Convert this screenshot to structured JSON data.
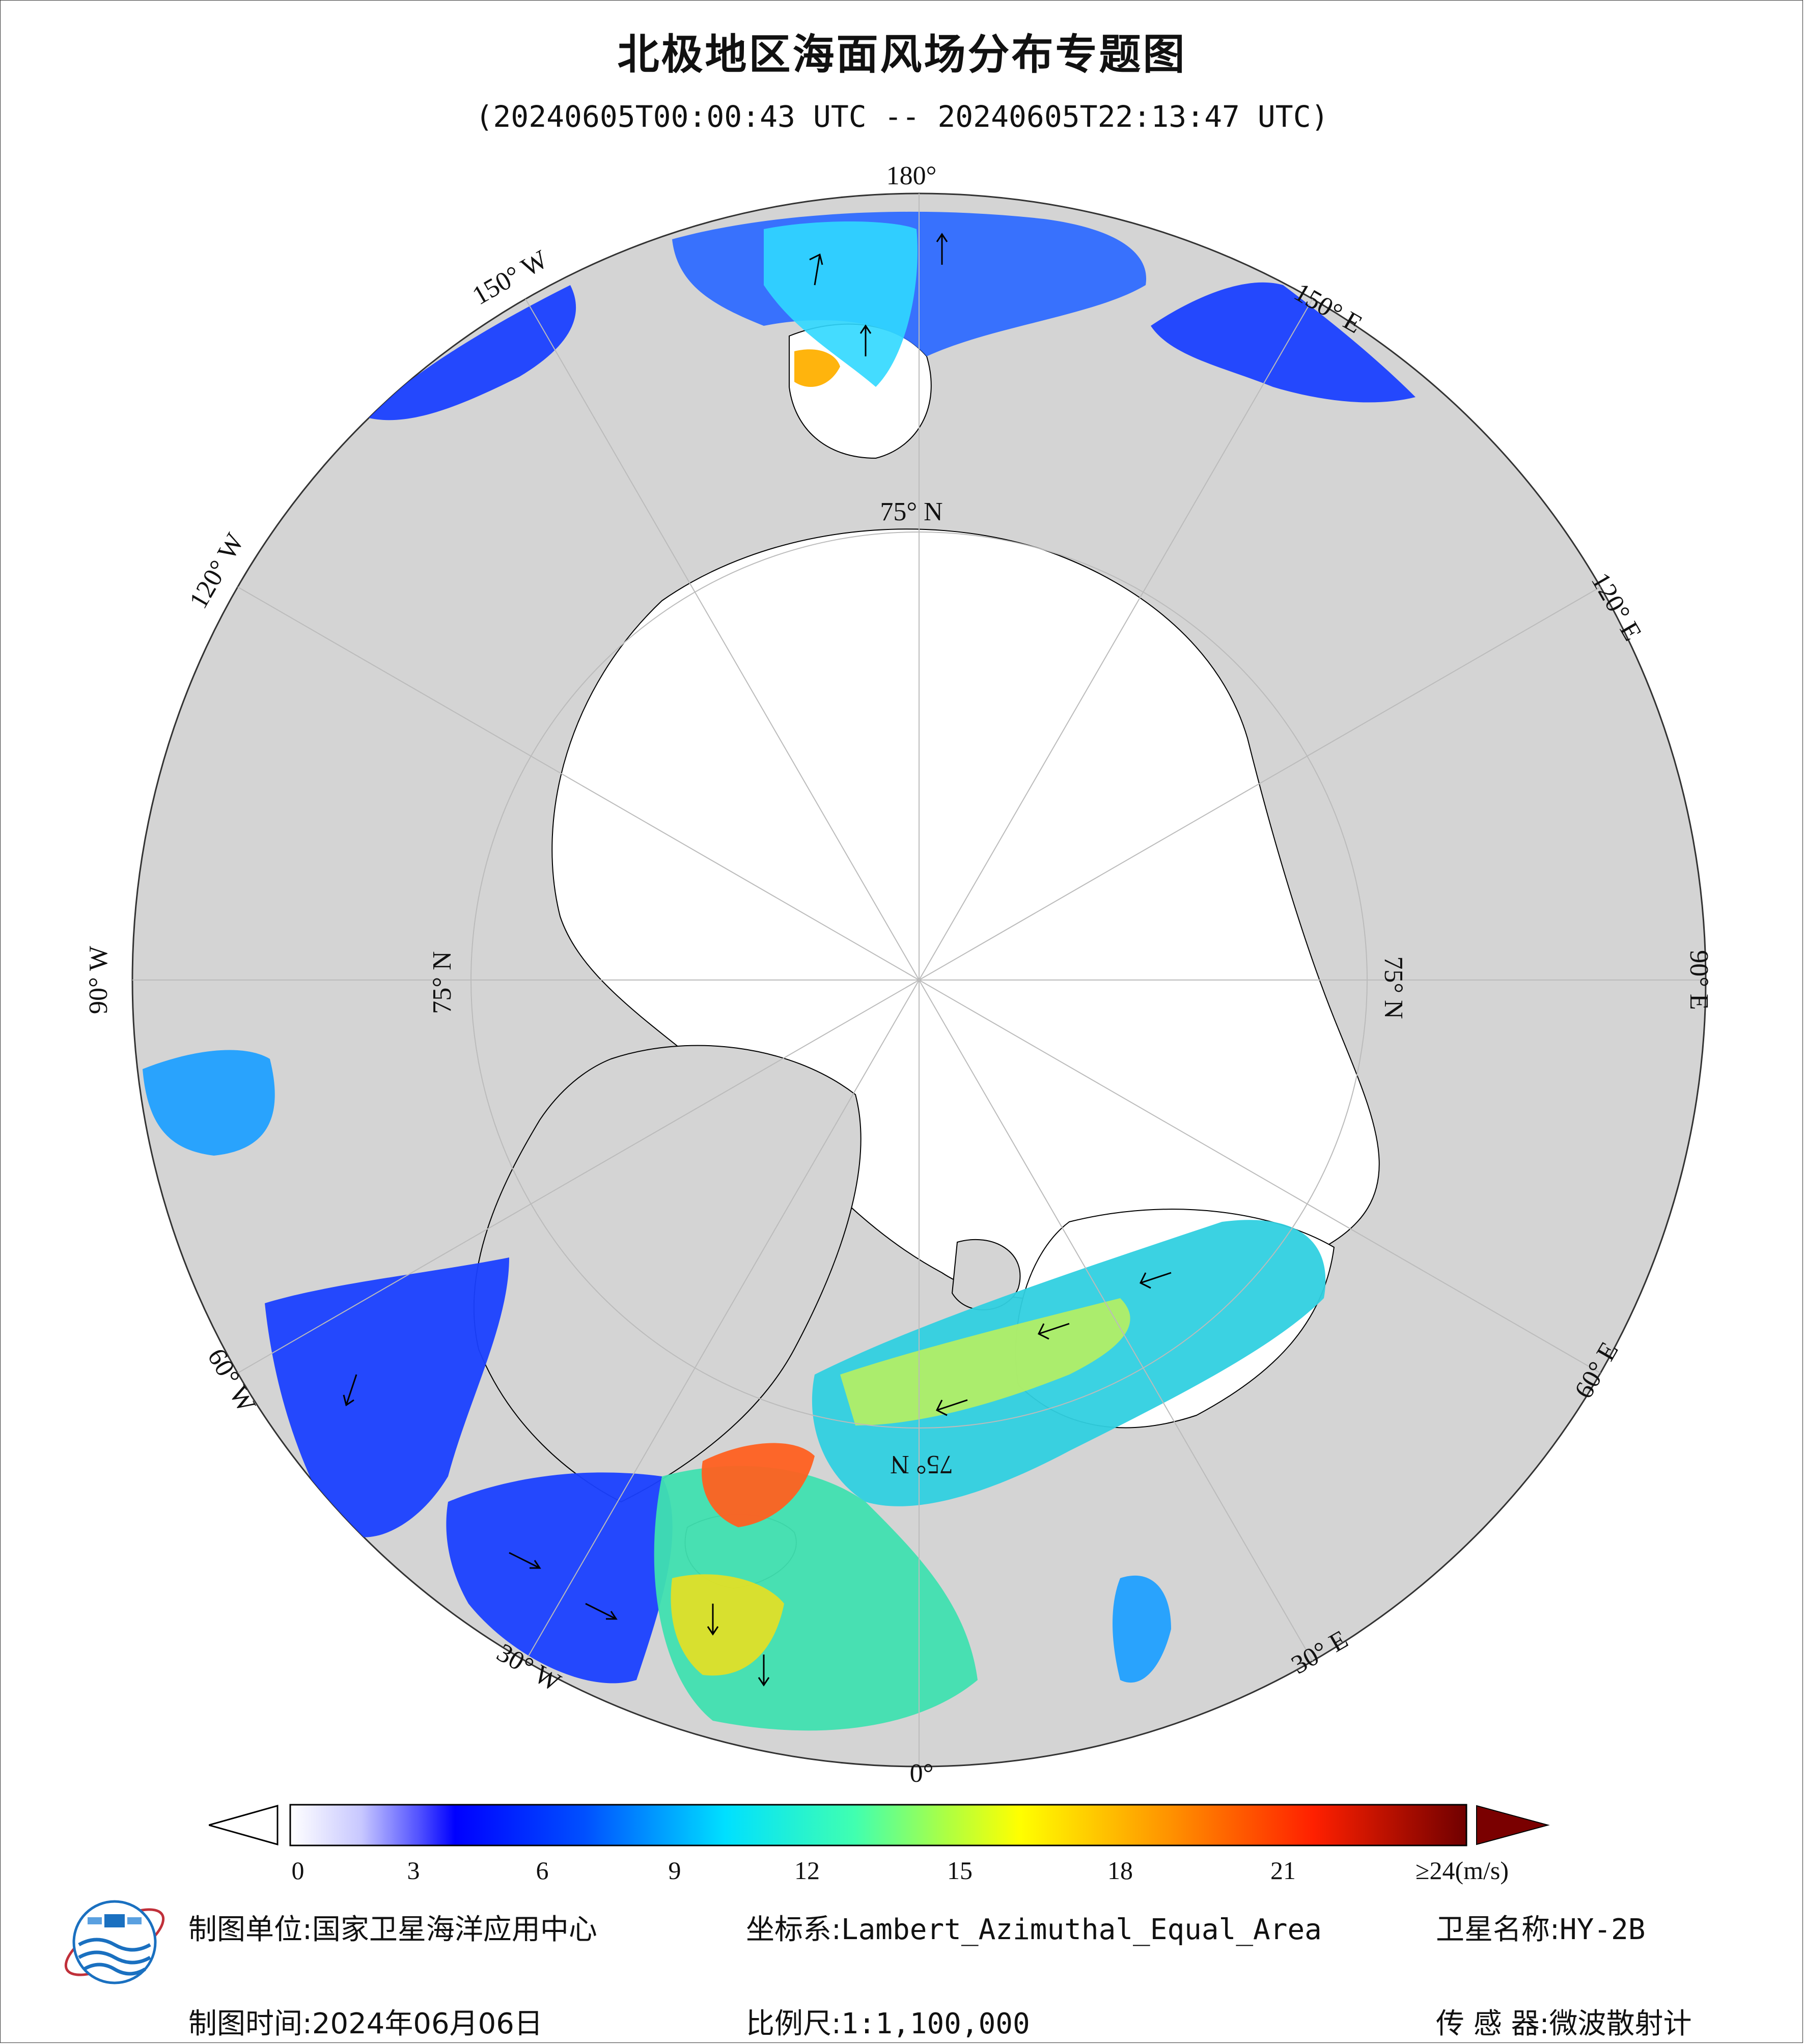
{
  "header": {
    "title": "北极地区海面风场分布专题图",
    "subtitle": "(20240605T00:00:43 UTC -- 20240605T22:13:47 UTC)"
  },
  "map": {
    "projection_center": "North Pole",
    "longitude_labels": [
      "180°",
      "150° E",
      "120° E",
      "90° E",
      "60° E",
      "30° E",
      "0°",
      "30° W",
      "60° W",
      "90° W",
      "120° W",
      "150° W"
    ],
    "latitude_labels": [
      "75° N",
      "75° N",
      "75° N",
      "75° N"
    ],
    "colors": {
      "land": "#d4d4d4",
      "sea_ice": "#ffffff",
      "coast": "#000000",
      "grid": "#bbbbbb"
    }
  },
  "colorbar": {
    "ticks": [
      "0",
      "3",
      "6",
      "9",
      "12",
      "15",
      "18",
      "21"
    ],
    "max_label": "≥24(m/s)",
    "tick_values": [
      0,
      3,
      6,
      9,
      12,
      15,
      18,
      21
    ],
    "range": [
      0,
      24
    ],
    "colors": [
      "#ffffff",
      "#c8c8ff",
      "#8080ff",
      "#3030ff",
      "#0000ff",
      "#0050ff",
      "#00a0ff",
      "#00e0ff",
      "#40ffc0",
      "#a0ff60",
      "#ffff00",
      "#ffc000",
      "#ff8000",
      "#ff3000",
      "#d00000",
      "#700000"
    ]
  },
  "footer": {
    "producer_label": "制图单位:",
    "producer": "国家卫星海洋应用中心",
    "date_label": "制图时间:",
    "date": "2024年06月06日",
    "crs_label": "坐标系:",
    "crs": "Lambert_Azimuthal_Equal_Area",
    "scale_label": "比例尺:",
    "scale": "1:1,100,000",
    "satellite_label": "卫星名称:",
    "satellite": "HY-2B",
    "sensor_label": "传 感 器:",
    "sensor": "微波散射计"
  }
}
